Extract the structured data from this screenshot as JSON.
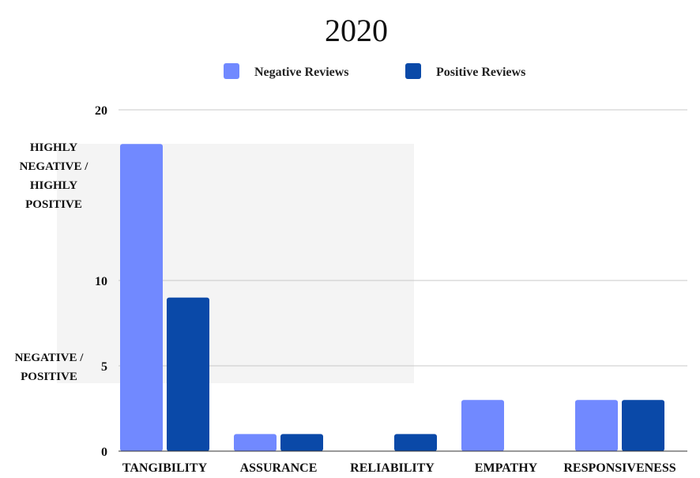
{
  "chart_data": {
    "type": "bar",
    "title": "2020",
    "xlabel": "",
    "ylabel": "",
    "ylim": [
      0,
      20
    ],
    "y_ticks": [
      0,
      5,
      10,
      20
    ],
    "categories": [
      "TANGIBILITY",
      "ASSURANCE",
      "RELIABILITY",
      "EMPATHY",
      "RESPONSIVENESS"
    ],
    "series": [
      {
        "name": "Negative Reviews",
        "color": "#7189ff",
        "values": [
          18,
          1,
          0,
          3,
          3
        ]
      },
      {
        "name": "Positive Reviews",
        "color": "#0a49a8",
        "values": [
          9,
          1,
          1,
          0,
          3
        ]
      }
    ],
    "legend_position": "top-center",
    "grid": true,
    "annotations": [
      {
        "text_lines": [
          "HIGHLY",
          "NEGATIVE /",
          "HIGHLY",
          "POSITIVE"
        ]
      },
      {
        "text_lines": [
          "NEGATIVE /",
          "POSITIVE"
        ]
      }
    ]
  }
}
